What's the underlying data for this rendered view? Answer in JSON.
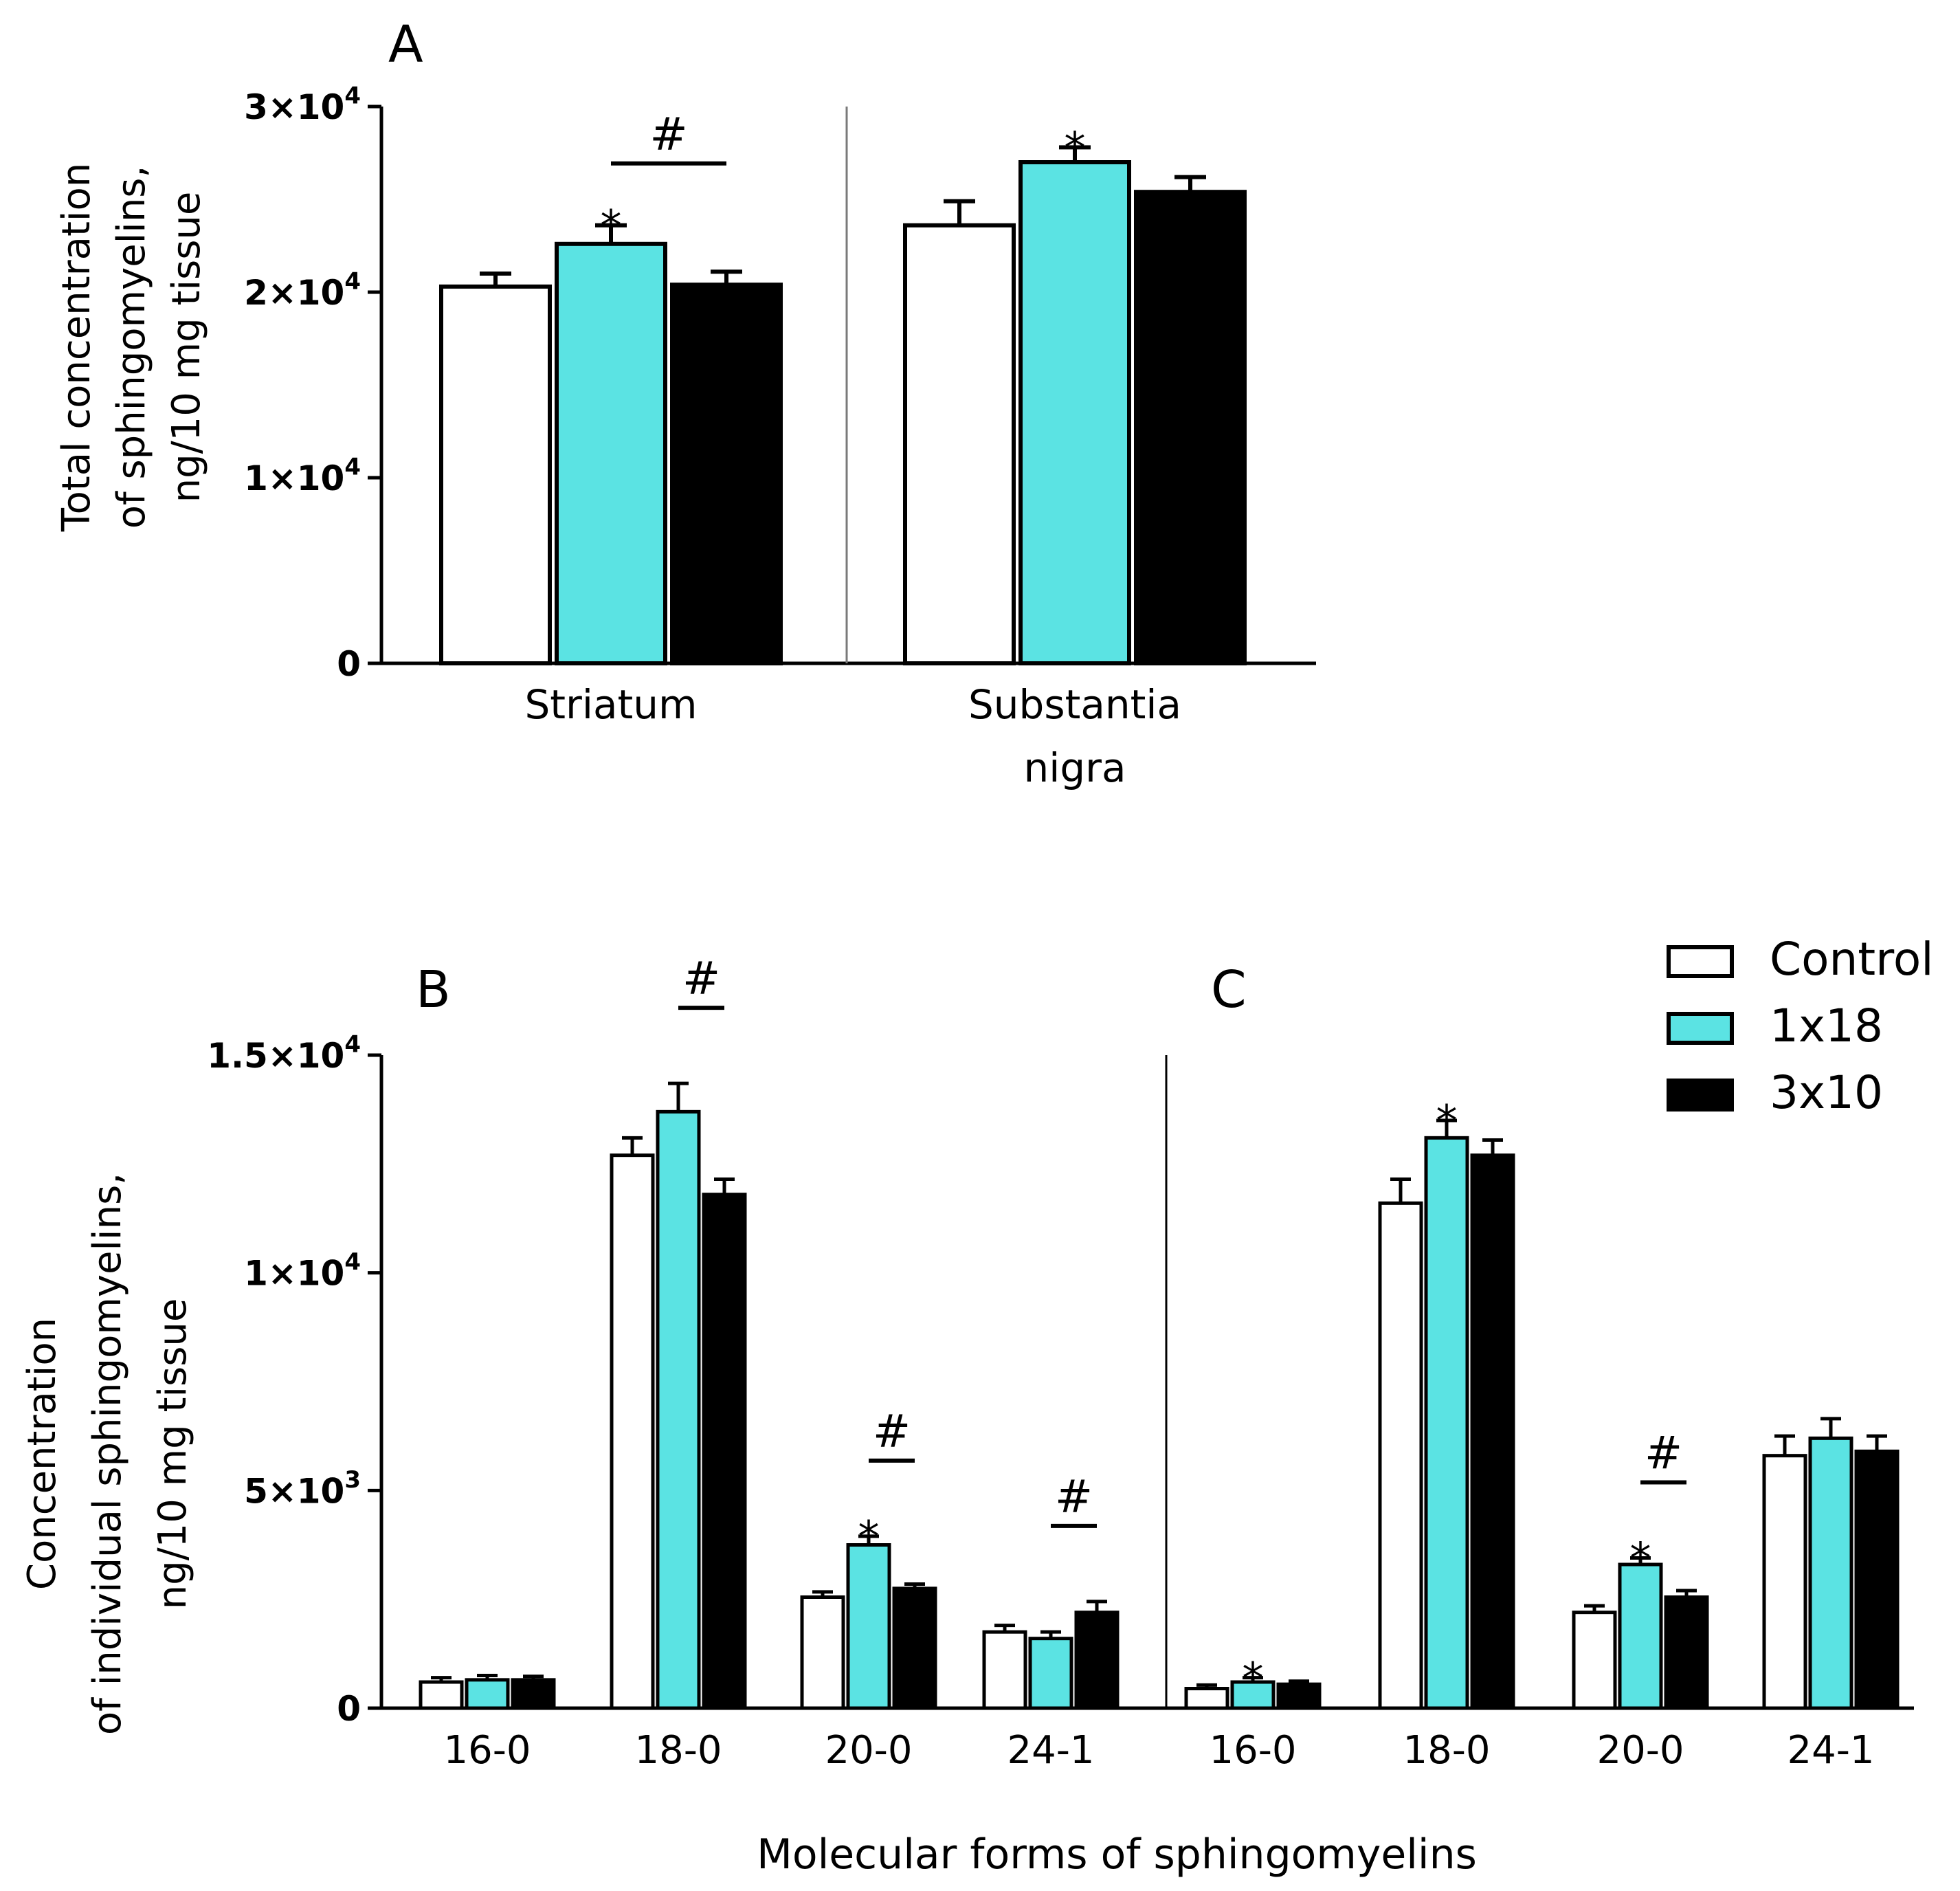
{
  "colors": {
    "control": "#ffffff",
    "treat1": "#5be3e3",
    "treat2": "#000000",
    "axis": "#000000",
    "divider": "#7a7a7a"
  },
  "legend": {
    "placement": "top-right",
    "items": [
      {
        "label": "Control",
        "color": "#ffffff"
      },
      {
        "label": "1x18",
        "color": "#5be3e3"
      },
      {
        "label": "3x10",
        "color": "#000000"
      }
    ]
  },
  "shared_xlabel": "Molecular forms of sphingomyelins",
  "chart_data": [
    {
      "panel": "A",
      "type": "bar",
      "title": "",
      "ylabel_lines": [
        "Total concentration",
        "of sphingomyelins,",
        "ng/10 mg tissue"
      ],
      "ylim": [
        0,
        30000
      ],
      "yticks": [
        {
          "value": 0,
          "mant": "0",
          "exp": ""
        },
        {
          "value": 10000,
          "mant": "1×10",
          "exp": "4"
        },
        {
          "value": 20000,
          "mant": "2×10",
          "exp": "4"
        },
        {
          "value": 30000,
          "mant": "3×10",
          "exp": "4"
        }
      ],
      "groups": [
        {
          "label_lines": [
            "Striatum"
          ],
          "values": [
            20300,
            22600,
            20400
          ],
          "errors": [
            700,
            1000,
            700
          ],
          "stars": [
            1
          ],
          "hash": {
            "from": 1,
            "to": 2
          }
        },
        {
          "label_lines": [
            "Substantia",
            "nigra"
          ],
          "values": [
            23600,
            27000,
            25400
          ],
          "errors": [
            1300,
            800,
            800
          ],
          "stars": [
            1
          ],
          "hash": null
        }
      ],
      "series": [
        {
          "name": "Control"
        },
        {
          "name": "1x18"
        },
        {
          "name": "3x10"
        }
      ]
    },
    {
      "panel": "B",
      "type": "bar",
      "title": "",
      "ylabel_lines": [
        "Concentration",
        "of individual sphingomyelins,",
        "ng/10 mg tissue"
      ],
      "ylim": [
        0,
        15000
      ],
      "yticks": [
        {
          "value": 0,
          "mant": "0",
          "exp": ""
        },
        {
          "value": 5000,
          "mant": "5×10",
          "exp": "3"
        },
        {
          "value": 10000,
          "mant": "1×10",
          "exp": "4"
        },
        {
          "value": 15000,
          "mant": "1.5×10",
          "exp": "4"
        }
      ],
      "groups": [
        {
          "label_lines": [
            "16-0"
          ],
          "values": [
            600,
            650,
            650
          ],
          "errors": [
            100,
            100,
            80
          ],
          "stars": [],
          "hash": null
        },
        {
          "label_lines": [
            "18-0"
          ],
          "values": [
            12700,
            13700,
            11800
          ],
          "errors": [
            400,
            650,
            350
          ],
          "stars": [],
          "hash": {
            "from": 1,
            "to": 2
          }
        },
        {
          "label_lines": [
            "20-0"
          ],
          "values": [
            2550,
            3750,
            2750
          ],
          "errors": [
            120,
            200,
            100
          ],
          "stars": [
            1
          ],
          "hash": {
            "from": 1,
            "to": 2
          }
        },
        {
          "label_lines": [
            "24-1"
          ],
          "values": [
            1750,
            1600,
            2200
          ],
          "errors": [
            150,
            150,
            250
          ],
          "stars": [],
          "hash": {
            "from": 1,
            "to": 2
          }
        }
      ],
      "series": [
        {
          "name": "Control"
        },
        {
          "name": "1x18"
        },
        {
          "name": "3x10"
        }
      ]
    },
    {
      "panel": "C",
      "type": "bar",
      "title": "",
      "ylim": [
        0,
        15000
      ],
      "groups": [
        {
          "label_lines": [
            "16-0"
          ],
          "values": [
            450,
            600,
            550
          ],
          "errors": [
            80,
            100,
            70
          ],
          "stars": [
            1
          ],
          "hash": null
        },
        {
          "label_lines": [
            "18-0"
          ],
          "values": [
            11600,
            13100,
            12700
          ],
          "errors": [
            550,
            400,
            350
          ],
          "stars": [
            1
          ],
          "hash": null
        },
        {
          "label_lines": [
            "20-0"
          ],
          "values": [
            2200,
            3300,
            2550
          ],
          "errors": [
            150,
            150,
            150
          ],
          "stars": [
            1
          ],
          "hash": {
            "from": 1,
            "to": 2
          }
        },
        {
          "label_lines": [
            "24-1"
          ],
          "values": [
            5800,
            6200,
            5900
          ],
          "errors": [
            450,
            450,
            350
          ],
          "stars": [],
          "hash": null
        }
      ],
      "series": [
        {
          "name": "Control"
        },
        {
          "name": "1x18"
        },
        {
          "name": "3x10"
        }
      ]
    }
  ]
}
